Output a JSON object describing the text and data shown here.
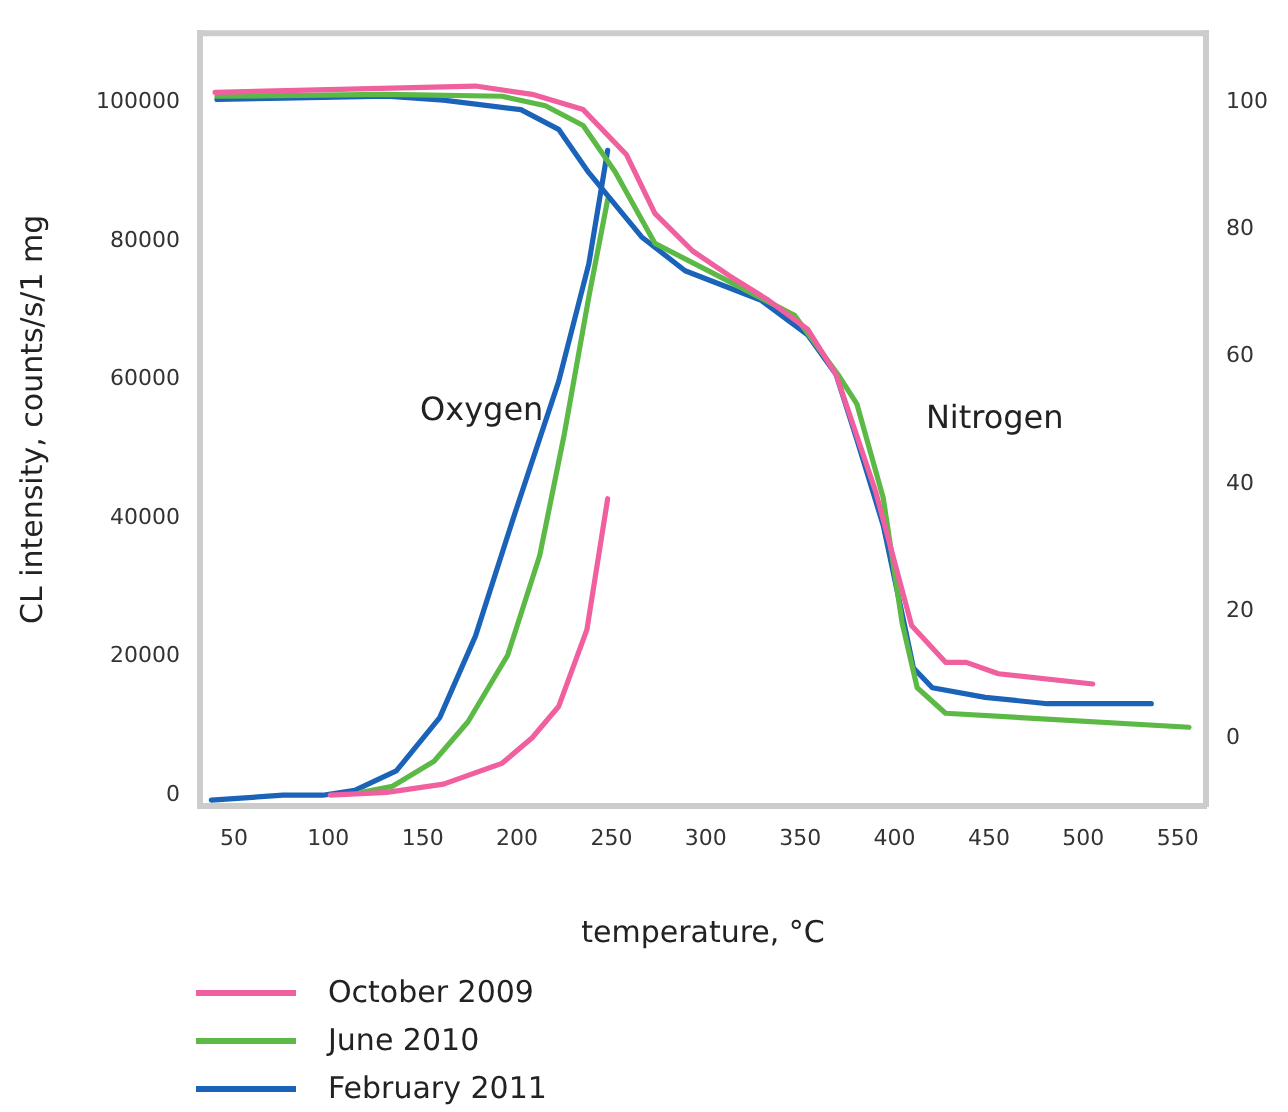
{
  "chart_data": {
    "type": "line",
    "xlabel": "temperature, °C",
    "ylabel": "CL intensity, counts/s/1 mg",
    "xlim": [
      32,
      565
    ],
    "xticks": [
      50,
      100,
      150,
      200,
      250,
      300,
      350,
      400,
      450,
      500,
      550
    ],
    "ylim": [
      -1500,
      110000
    ],
    "yticks": [
      0,
      20000,
      40000,
      60000,
      80000,
      100000
    ],
    "y2lim": [
      -10.5,
      110.8
    ],
    "y2ticks": [
      0,
      20,
      40,
      60,
      80,
      100
    ],
    "grid": false,
    "legend": "bottom",
    "marker": "none",
    "line_style": "solid",
    "annotations": [
      "Oxygen",
      "Nitrogen"
    ],
    "series": [
      {
        "name": "October 2009",
        "color": "#f0609e",
        "axis": "y2",
        "x": [
          40,
          178,
          208,
          235,
          258,
          273,
          293,
          313,
          333,
          354,
          369,
          390,
          409,
          427,
          438,
          455,
          505
        ],
        "values": [
          101.5,
          102.5,
          101.2,
          98.8,
          91.7,
          82.5,
          76.6,
          72.6,
          68.9,
          64.3,
          57.2,
          38.8,
          17.8,
          12,
          12,
          10.2,
          8.6
        ]
      },
      {
        "name": "June 2010",
        "color": "#5cb946",
        "axis": "y2",
        "x": [
          41,
          131,
          192,
          215,
          235,
          252,
          273,
          313,
          347,
          370,
          380,
          394,
          404,
          412,
          427,
          556
        ],
        "values": [
          100.9,
          101.2,
          100.9,
          99.4,
          96.3,
          89,
          77.8,
          71.7,
          66.5,
          57.2,
          52.6,
          37.8,
          18.2,
          8,
          4,
          1.8
        ]
      },
      {
        "name": "February 2011",
        "color": "#1a63b8",
        "axis": "y2",
        "x": [
          41,
          76,
          131,
          161,
          202,
          222,
          238,
          266,
          289,
          329,
          354,
          369,
          380,
          394,
          405,
          410,
          420,
          448,
          481,
          536
        ],
        "values": [
          100.4,
          100.6,
          100.9,
          100.3,
          98.8,
          95.7,
          88.9,
          78.8,
          73.5,
          68.9,
          63.4,
          57.2,
          47,
          33.5,
          18.2,
          11.1,
          8,
          6.5,
          5.5,
          5.5
        ]
      },
      {
        "color": "#f0609e",
        "x": [
          101,
          131,
          161,
          192,
          208,
          222,
          237,
          248
        ],
        "values": [
          0,
          400,
          1600,
          4600,
          8300,
          12800,
          23900,
          42800
        ]
      },
      {
        "color": "#5cb946",
        "x": [
          117,
          134,
          156,
          174,
          195,
          212,
          225,
          238,
          248
        ],
        "values": [
          400,
          1300,
          4900,
          10600,
          20200,
          34600,
          52100,
          71900,
          86000
        ]
      },
      {
        "color": "#1a63b8",
        "x": [
          38,
          76,
          97,
          114,
          136,
          159,
          178,
          198,
          222,
          238,
          248
        ],
        "values": [
          -700,
          0,
          0,
          700,
          3500,
          11200,
          23000,
          40000,
          59700,
          76700,
          93100
        ]
      }
    ]
  }
}
